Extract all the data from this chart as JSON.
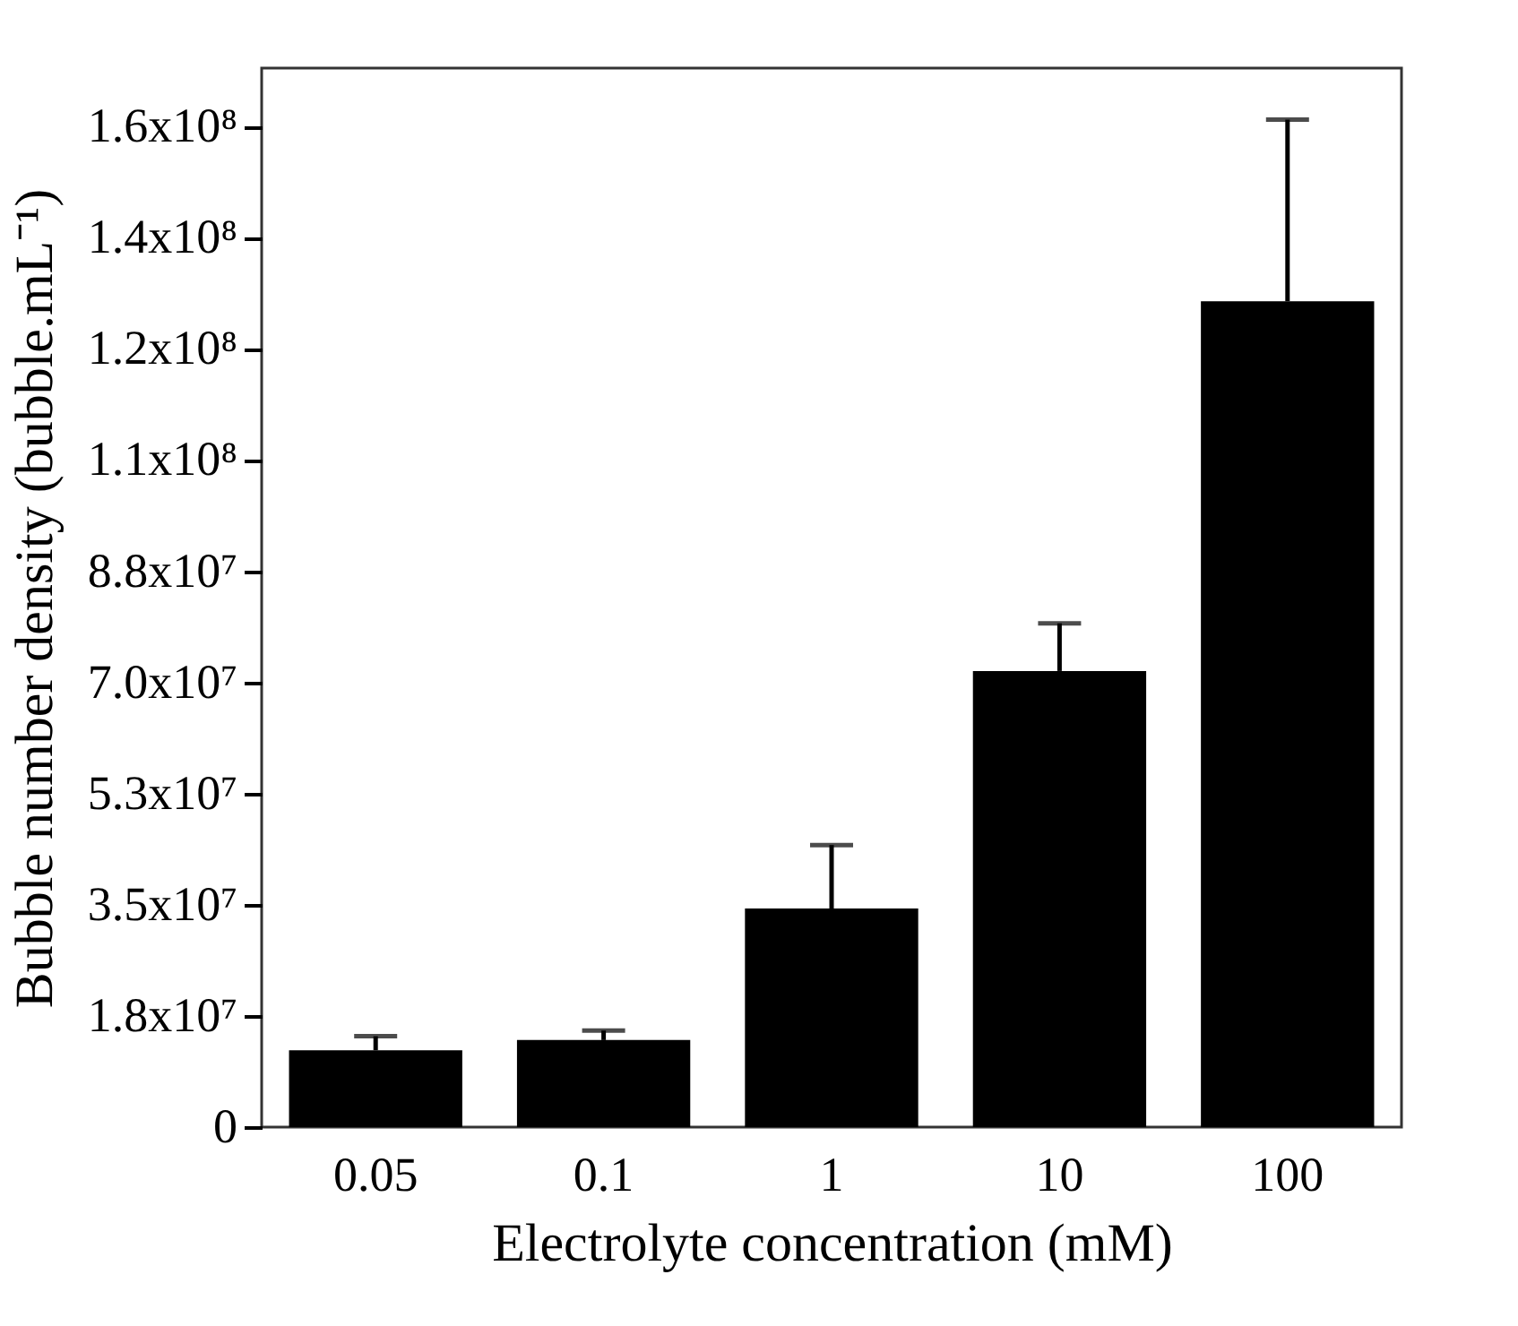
{
  "chart_data": {
    "type": "bar",
    "xlabel": "Electrolyte concentration (mM)",
    "ylabel": "Bubble number density (bubble.mL⁻¹)",
    "categories": [
      "0.05",
      "0.1",
      "1",
      "10",
      "100"
    ],
    "values": [
      12100000,
      13700000,
      34400000,
      71800000,
      130000000
    ],
    "color": "#000000",
    "errors": [
      [
        12100000,
        14300000
      ],
      [
        13700000,
        15200000
      ],
      [
        34400000,
        44400000
      ],
      [
        71800000,
        79300000
      ],
      [
        130000000,
        158600000
      ]
    ],
    "ylim": [
      0,
      166700000
    ],
    "yticks": [
      0,
      {
        "value": 17500000,
        "label": "1.8x10⁷"
      },
      {
        "value": 35000000,
        "label": "3.5x10⁷"
      },
      {
        "value": 52500000,
        "label": "5.3x10⁷"
      },
      {
        "value": 70000000,
        "label": "7.0x10⁷"
      },
      {
        "value": 87500000,
        "label": "8.8x10⁷"
      },
      {
        "value": 105000000,
        "label": "1.1x10⁸"
      },
      {
        "value": 122500000,
        "label": "1.2x10⁸"
      },
      {
        "value": 140000000,
        "label": "1.4x10⁸"
      },
      {
        "value": 157500000,
        "label": "1.6x10⁸"
      }
    ],
    "grid": false
  }
}
